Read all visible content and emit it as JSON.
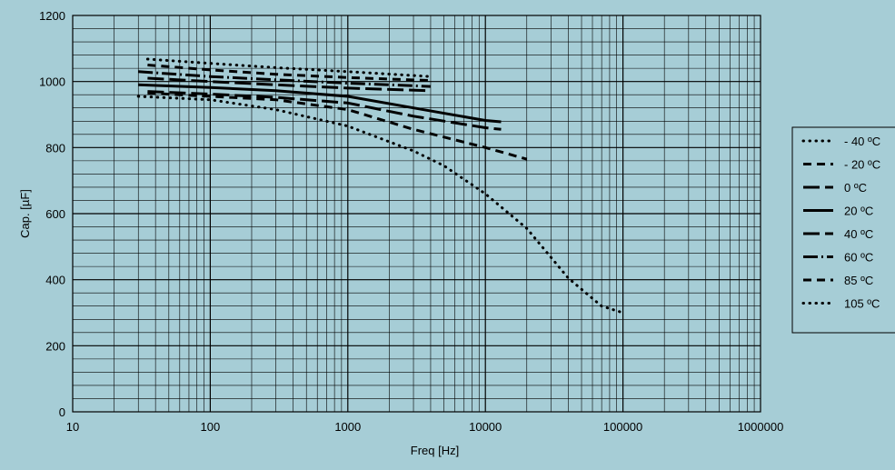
{
  "background_color": "#a6cdd6",
  "line_color": "#000000",
  "chart_data": {
    "type": "line",
    "title": "",
    "xlabel": "Freq [Hz]",
    "ylabel": "Cap. [µF]",
    "x_scale": "log",
    "xlim": [
      10,
      1000000
    ],
    "ylim": [
      0,
      1200
    ],
    "grid": true,
    "legend_position": "right",
    "x_tick_labels": [
      "10",
      "100",
      "1000",
      "10000",
      "100000",
      "1000000"
    ],
    "y_tick_labels": [
      "0",
      "200",
      "400",
      "600",
      "800",
      "1000",
      "1200"
    ],
    "series": [
      {
        "name": "- 40 ºC",
        "style": "dotted",
        "x": [
          30,
          100,
          300,
          1000,
          3000,
          5000,
          10000,
          20000,
          40000,
          70000,
          100000
        ],
        "y": [
          955,
          945,
          915,
          865,
          790,
          745,
          660,
          555,
          405,
          320,
          300
        ]
      },
      {
        "name": "- 20 ºC",
        "style": "dashed",
        "x": [
          35,
          100,
          300,
          1000,
          3000,
          10000,
          20000
        ],
        "y": [
          965,
          955,
          945,
          915,
          855,
          800,
          765
        ]
      },
      {
        "name": "0 ºC",
        "style": "longdash",
        "x": [
          35,
          100,
          300,
          1000,
          3000,
          10000,
          13000
        ],
        "y": [
          970,
          962,
          952,
          935,
          895,
          860,
          855
        ]
      },
      {
        "name": "20 ºC",
        "style": "solid",
        "x": [
          30,
          100,
          300,
          1000,
          3000,
          10000,
          13000
        ],
        "y": [
          990,
          982,
          972,
          955,
          920,
          882,
          878
        ]
      },
      {
        "name": "40 ºC",
        "style": "longdash",
        "x": [
          35,
          100,
          300,
          1000,
          4000
        ],
        "y": [
          1010,
          1000,
          990,
          980,
          972
        ]
      },
      {
        "name": "60 ºC",
        "style": "dashdot",
        "x": [
          30,
          100,
          300,
          1000,
          4000
        ],
        "y": [
          1030,
          1015,
          1005,
          995,
          985
        ]
      },
      {
        "name": "85 ºC",
        "style": "dashed",
        "x": [
          35,
          100,
          300,
          1000,
          4000
        ],
        "y": [
          1050,
          1035,
          1022,
          1012,
          1003
        ]
      },
      {
        "name": "105 ºC",
        "style": "dotted",
        "x": [
          35,
          100,
          300,
          1000,
          4000
        ],
        "y": [
          1068,
          1055,
          1042,
          1030,
          1015
        ]
      }
    ]
  }
}
